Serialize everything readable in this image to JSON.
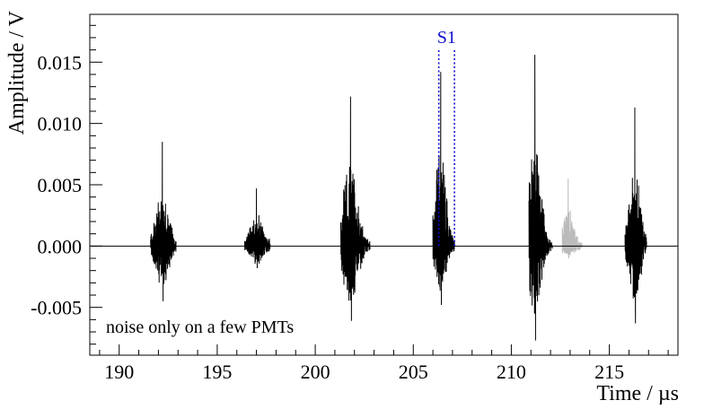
{
  "chart_data": {
    "type": "line",
    "title": "",
    "xlabel": "Time / µs",
    "ylabel": "Amplitude / V",
    "xlim": [
      188.5,
      218.5
    ],
    "ylim": [
      -0.0089,
      0.0189
    ],
    "x_ticks": [
      190,
      195,
      200,
      205,
      210,
      215
    ],
    "x_tick_labels": [
      "190",
      "195",
      "200",
      "205",
      "210",
      "215"
    ],
    "y_ticks": [
      -0.005,
      0.0,
      0.005,
      0.01,
      0.015
    ],
    "y_tick_labels": [
      "-0.005",
      "0.000",
      "0.005",
      "0.010",
      "0.015"
    ],
    "grid": false,
    "colors": {
      "signal": "#000000",
      "faint": "#bbbbbb",
      "s1": "#1010d0",
      "baseline": "#000000"
    },
    "bursts": [
      {
        "t_start": 191.6,
        "t_end": 192.9,
        "peak_time": 192.2,
        "max": 0.0085,
        "min": -0.0045,
        "faint": false
      },
      {
        "t_start": 196.4,
        "t_end": 197.7,
        "peak_time": 197.0,
        "max": 0.0047,
        "min": -0.0018,
        "faint": false
      },
      {
        "t_start": 201.3,
        "t_end": 202.8,
        "peak_time": 201.8,
        "max": 0.0122,
        "min": -0.0061,
        "faint": false
      },
      {
        "t_start": 206.0,
        "t_end": 207.1,
        "peak_time": 206.4,
        "max": 0.0142,
        "min": -0.0048,
        "faint": false
      },
      {
        "t_start": 210.9,
        "t_end": 212.1,
        "peak_time": 211.2,
        "max": 0.0156,
        "min": -0.0077,
        "faint": false
      },
      {
        "t_start": 212.6,
        "t_end": 213.6,
        "peak_time": 212.9,
        "max": 0.0055,
        "min": -0.001,
        "faint": true
      },
      {
        "t_start": 215.8,
        "t_end": 216.9,
        "peak_time": 216.3,
        "max": 0.0113,
        "min": -0.0063,
        "faint": false
      }
    ],
    "s1_window": {
      "label": "S1",
      "t_start": 206.3,
      "t_end": 207.1
    },
    "annotations": [
      {
        "text": "noise only on a few PMTs"
      }
    ]
  }
}
